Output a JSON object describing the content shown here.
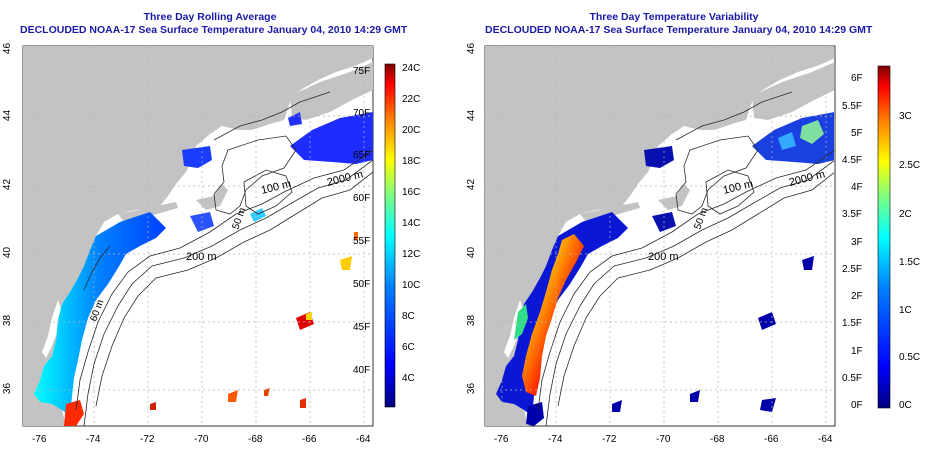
{
  "panels": [
    {
      "title": "Three Day Rolling Average",
      "subtitle": "DECLOUDED NOAA-17 Sea Surface Temperature January 04, 2010 14:29 GMT",
      "x_ticks": [
        "-76",
        "-74",
        "-72",
        "-70",
        "-68",
        "-66",
        "-64"
      ],
      "y_ticks": [
        "36",
        "38",
        "40",
        "42",
        "44",
        "46"
      ],
      "contour_labels": [
        "100 m",
        "2000 m",
        "50 m",
        "200 m",
        "60 m"
      ],
      "colorbar_left": [
        "75F",
        "70F",
        "65F",
        "60F",
        "55F",
        "50F",
        "45F",
        "40F"
      ],
      "colorbar_right": [
        "24C",
        "22C",
        "20C",
        "18C",
        "16C",
        "14C",
        "12C",
        "10C",
        "8C",
        "6C",
        "4C"
      ]
    },
    {
      "title": "Three Day Temperature Variability",
      "subtitle": "DECLOUDED NOAA-17 Sea Surface Temperature January 04, 2010 14:29 GMT",
      "x_ticks": [
        "-76",
        "-74",
        "-72",
        "-70",
        "-68",
        "-66",
        "-64"
      ],
      "y_ticks": [
        "36",
        "38",
        "40",
        "42",
        "44",
        "46"
      ],
      "contour_labels": [
        "100 m",
        "2000 m",
        "50 m",
        "200 m"
      ],
      "colorbar_left": [
        "6F",
        "5.5F",
        "5F",
        "4.5F",
        "4F",
        "3.5F",
        "3F",
        "2.5F",
        "2F",
        "1.5F",
        "1F",
        "0.5F",
        "0F"
      ],
      "colorbar_right": [
        "3C",
        "2.5C",
        "2C",
        "1.5C",
        "1C",
        "0.5C",
        "0C"
      ]
    }
  ],
  "colors": {
    "title": "#1a1aa6",
    "land": "#c3c3c3",
    "ocean": "#ffffff",
    "grid": "#b4b4b4",
    "contour": "#2a2a2a",
    "colormap": [
      "#00007f",
      "#0000ff",
      "#007fff",
      "#00ffff",
      "#7fff7f",
      "#ffff00",
      "#ff7f00",
      "#ff0000",
      "#7f0000"
    ]
  }
}
